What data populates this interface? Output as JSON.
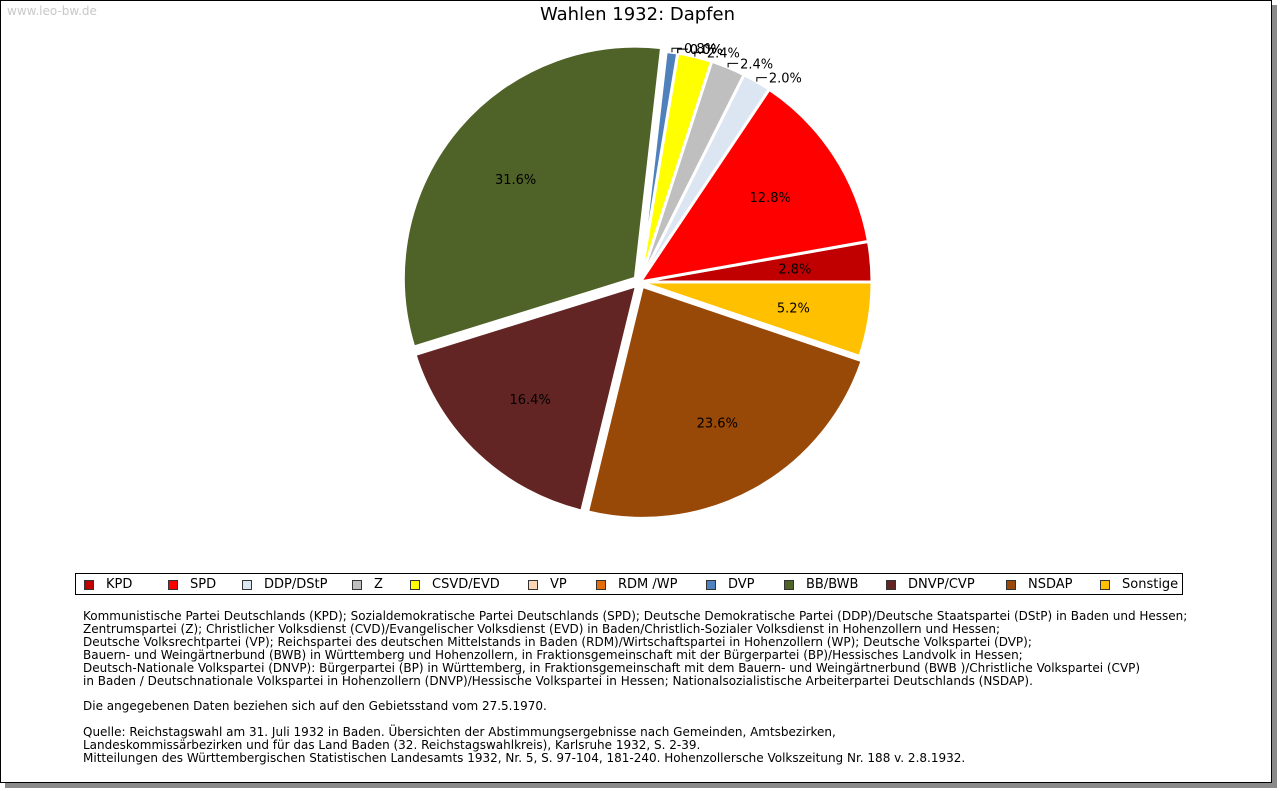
{
  "watermark": "www.leo-bw.de",
  "chart_data": {
    "type": "pie",
    "title": "Wahlen 1932: Dapfen",
    "slices": [
      {
        "label": "KPD",
        "value": 2.8,
        "display": "2.8%",
        "color": "#c00000"
      },
      {
        "label": "SPD",
        "value": 12.8,
        "display": "12.8%",
        "color": "#ff0000"
      },
      {
        "label": "DDP/DStP",
        "value": 2.0,
        "display": "2.0%",
        "color": "#dce6f2"
      },
      {
        "label": "Z",
        "value": 2.4,
        "display": "2.4%",
        "color": "#bfbfbf"
      },
      {
        "label": "CSVD/EVD",
        "value": 2.4,
        "display": "2.4%",
        "color": "#ffff00"
      },
      {
        "label": "VP",
        "value": 0.0,
        "display": "0.0%",
        "color": "#fcd5b5"
      },
      {
        "label": "RDM /WP",
        "value": 0.0,
        "display": "0.0%",
        "color": "#e46c0a"
      },
      {
        "label": "DVP",
        "value": 0.8,
        "display": "0.8%",
        "color": "#4f81bd"
      },
      {
        "label": "BB/BWB",
        "value": 31.6,
        "display": "31.6%",
        "color": "#4f6228"
      },
      {
        "label": "DNVP/CVP",
        "value": 16.4,
        "display": "16.4%",
        "color": "#632523"
      },
      {
        "label": "NSDAP",
        "value": 23.6,
        "display": "23.6%",
        "color": "#984807"
      },
      {
        "label": "Sonstige",
        "value": 5.2,
        "display": "5.2%",
        "color": "#ffc000"
      }
    ],
    "legend_position": "bottom"
  },
  "notes": {
    "parties": [
      "Kommunistische Partei Deutschlands (KPD); Sozialdemokratische Partei Deutschlands (SPD); Deutsche Demokratische Partei (DDP)/Deutsche Staatspartei (DStP) in Baden und Hessen;",
      "Zentrumspartei (Z); Christlicher Volksdienst (CVD)/Evangelischer Volksdienst (EVD) in Baden/Christlich-Sozialer Volksdienst in Hohenzollern und Hessen;",
      "Deutsche Volksrechtpartei (VP); Reichspartei des deutschen Mittelstands in Baden (RDM)/Wirtschaftspartei in Hohenzollern (WP); Deutsche Volkspartei (DVP);",
      "Bauern- und Weingärtnerbund (BWB) in Württemberg und Hohenzollern, in Fraktionsgemeinschaft mit der Bürgerpartei (BP)/Hessisches Landvolk in Hessen;",
      "Deutsch-Nationale Volkspartei (DNVP): Bürgerpartei (BP) in Württemberg, in Fraktionsgemeinschaft mit dem Bauern- und Weingärtnerbund (BWB )/Christliche Volkspartei (CVP)",
      "in Baden / Deutschnationale Volkspartei in Hohenzollern (DNVP)/Hessische Volkspartei in Hessen; Nationalsozialistische Arbeiterpartei Deutschlands (NSDAP)."
    ],
    "territory": "Die angegebenen Daten beziehen sich auf den Gebietsstand vom 27.5.1970.",
    "source": [
      "Quelle: Reichstagswahl am 31. Juli 1932 in Baden. Übersichten der Abstimmungsergebnisse nach Gemeinden, Amtsbezirken,",
      "Landeskommissärbezirken und für das Land Baden (32. Reichstagswahlkreis), Karlsruhe 1932, S. 2-39.",
      "Mitteilungen des Württembergischen Statistischen Landesamts 1932, Nr. 5, S. 97-104, 181-240. Hohenzollersche Volkszeitung Nr. 188 v. 2.8.1932."
    ]
  }
}
